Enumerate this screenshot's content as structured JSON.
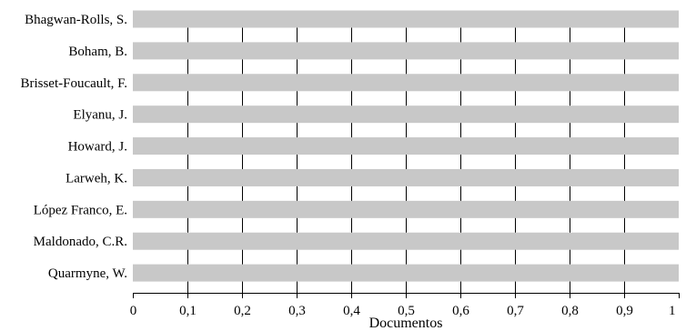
{
  "chart_data": {
    "type": "bar",
    "orientation": "horizontal",
    "xlabel": "Documentos",
    "ylabel": "",
    "xlim": [
      0,
      1
    ],
    "x_ticks": [
      "0",
      "0,1",
      "0,2",
      "0,3",
      "0,4",
      "0,5",
      "0,6",
      "0,7",
      "0,8",
      "0,9",
      "1"
    ],
    "categories": [
      "Bhagwan-Rolls, S.",
      "Boham, B.",
      "Brisset-Foucault, F.",
      "Elyanu, J.",
      "Howard, J.",
      "Larweh, K.",
      "López Franco, E.",
      "Maldonado, C.R.",
      "Quarmyne, W."
    ],
    "values": [
      1,
      1,
      1,
      1,
      1,
      1,
      1,
      1,
      1
    ],
    "bar_color": "#c8c8c8",
    "grid": true,
    "legend": "none"
  }
}
